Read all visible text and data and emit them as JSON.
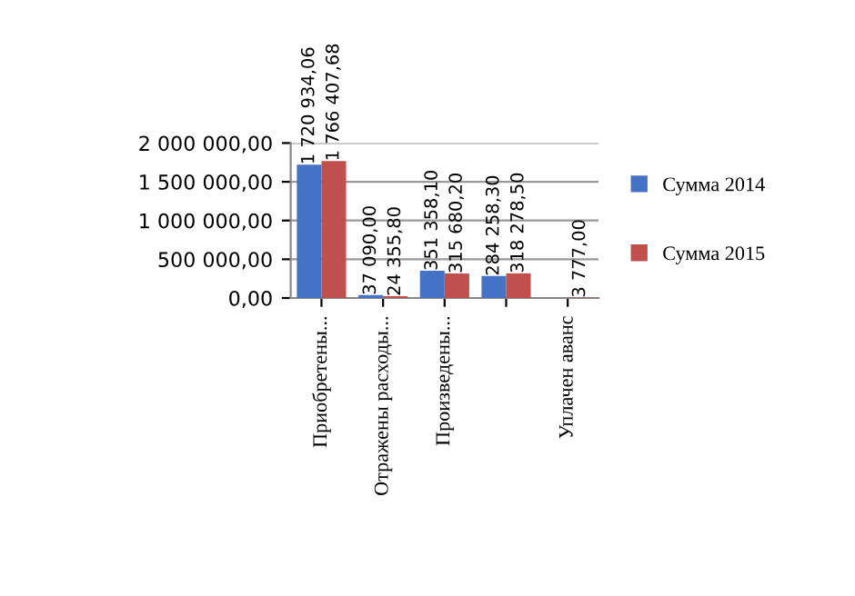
{
  "chart_data": {
    "type": "bar",
    "categories": [
      "Приобретены...",
      "Отражены расходы...",
      "Произведены...",
      null,
      "Уплачен аванс"
    ],
    "series": [
      {
        "name": "Сумма 2014",
        "color": "#4472c4",
        "values": [
          1720934.06,
          37090.0,
          351358.1,
          284258.3,
          null
        ],
        "value_labels": [
          "1 720 934,06",
          "37 090,00",
          "351 358,10",
          "284 258,30",
          null
        ]
      },
      {
        "name": "Сумма 2015",
        "color": "#c0504d",
        "values": [
          1766407.68,
          24355.8,
          315680.2,
          318278.5,
          3777.0
        ],
        "value_labels": [
          "1 766 407,68",
          "24 355,80",
          "315 680,20",
          "318 278,50",
          "3 777,00"
        ]
      }
    ],
    "ylim": [
      0,
      2000000
    ],
    "yticks": [
      {
        "value": 0,
        "label": "0,00"
      },
      {
        "value": 500000,
        "label": "500 000,00"
      },
      {
        "value": 1000000,
        "label": "1 000 000,00"
      },
      {
        "value": 1500000,
        "label": "1 500 000,00"
      },
      {
        "value": 2000000,
        "label": "2 000 000,00"
      }
    ],
    "grid": "y",
    "legend": "right"
  }
}
